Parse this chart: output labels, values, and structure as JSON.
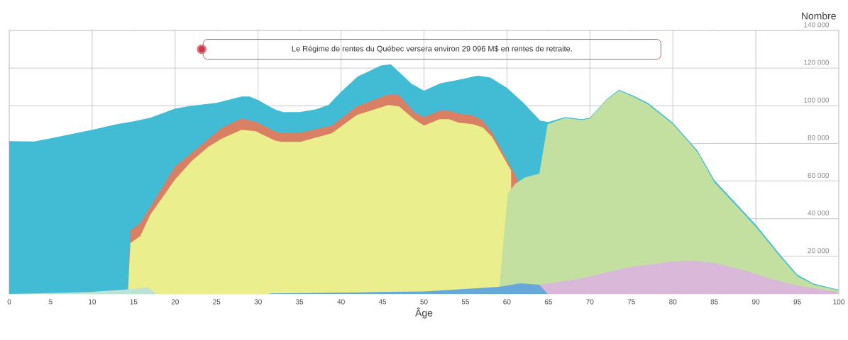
{
  "chart_data": {
    "type": "area",
    "xlabel": "Âge",
    "ylabel": "Nombre",
    "xlim": [
      0,
      100
    ],
    "ylim": [
      0,
      140000
    ],
    "xticks": [
      0,
      5,
      10,
      15,
      20,
      25,
      30,
      35,
      40,
      45,
      50,
      55,
      60,
      65,
      70,
      75,
      80,
      85,
      90,
      95,
      100
    ],
    "yticks": [
      {
        "value": 20000,
        "label": "20 000"
      },
      {
        "value": 40000,
        "label": "40 000"
      },
      {
        "value": 60000,
        "label": "60 000"
      },
      {
        "value": 80000,
        "label": "80 000"
      },
      {
        "value": 100000,
        "label": "100 000"
      },
      {
        "value": 120000,
        "label": "120 000"
      },
      {
        "value": 140000,
        "label": "140 000"
      }
    ],
    "grid": true,
    "annotations": [
      "Le Régime de rentes du Québec versera environ 29 096 M$ en rentes de retraite."
    ],
    "series": [
      {
        "color": "#42bcd5",
        "x": [
          0,
          3,
          5,
          10,
          13,
          15,
          17,
          20,
          22,
          25,
          28,
          29,
          30,
          32,
          33,
          35,
          37,
          38.5,
          39.9,
          42,
          44.8,
          46,
          48.5,
          50,
          52,
          53.5,
          56.5,
          58,
          60,
          62,
          64,
          65,
          67,
          69,
          70,
          72,
          73.5,
          75,
          77,
          80,
          83,
          85,
          90,
          93,
          95,
          97,
          100
        ],
        "values": [
          81200,
          81000,
          82700,
          87200,
          90200,
          91700,
          93600,
          98500,
          100000,
          101500,
          104900,
          104900,
          103000,
          98100,
          96600,
          96600,
          98100,
          100500,
          107000,
          115500,
          121400,
          122000,
          111700,
          108000,
          112000,
          113200,
          116000,
          115000,
          109500,
          101500,
          92100,
          91400,
          94000,
          92900,
          93600,
          103400,
          108500,
          105800,
          101500,
          91000,
          76000,
          60500,
          36800,
          20500,
          10300,
          5500,
          2300
        ]
      },
      {
        "color": "#d97f64",
        "x": [
          14.3,
          14.6,
          15.8,
          20,
          25.7,
          28,
          29.8,
          32,
          32.8,
          35.1,
          38.9,
          41.9,
          45.7,
          47,
          48.8,
          50,
          51.9,
          53,
          54.2,
          55.9,
          57.1,
          58.2,
          61.3
        ],
        "values": [
          0,
          33800,
          37600,
          67700,
          88400,
          93200,
          91400,
          86500,
          85400,
          85700,
          89500,
          99600,
          106000,
          105700,
          96600,
          94000,
          97400,
          97400,
          95900,
          94800,
          92100,
          85700,
          60900
        ]
      },
      {
        "color": "#eaee8c",
        "x": [
          14.3,
          14.6,
          15.8,
          17,
          20,
          22,
          24,
          25.7,
          28,
          29.7,
          32,
          32.8,
          35.1,
          38.9,
          41.9,
          45.7,
          47,
          48.8,
          50,
          51.9,
          53,
          54.2,
          55.9,
          57.1,
          58.2,
          60.5
        ],
        "values": [
          0,
          27000,
          30800,
          42100,
          60900,
          70700,
          78200,
          82700,
          87200,
          86500,
          81600,
          80800,
          80800,
          85400,
          95100,
          100400,
          99600,
          92900,
          89500,
          92900,
          92900,
          91000,
          90200,
          88400,
          83500,
          65600
        ]
      },
      {
        "color": "#c3e0a0",
        "x": [
          59,
          60.1,
          61,
          62.2,
          63.9,
          64.9,
          67,
          69,
          70,
          72,
          73.5,
          75,
          77,
          80,
          83,
          85,
          90,
          93,
          95,
          97,
          100
        ],
        "values": [
          0,
          53400,
          58500,
          62000,
          63900,
          90200,
          93500,
          92400,
          93100,
          103000,
          108000,
          105300,
          100800,
          90200,
          75200,
          59400,
          35700,
          19500,
          9400,
          4900,
          1900
        ]
      },
      {
        "color": "#d9b8d9",
        "x": [
          63.9,
          69,
          74.8,
          78.2,
          79.9,
          82.7,
          85,
          89,
          91.9,
          95,
          99.8
        ],
        "values": [
          4900,
          8300,
          14300,
          16200,
          17300,
          17600,
          16500,
          12000,
          7900,
          4500,
          1100
        ]
      },
      {
        "color": "#67a8db",
        "x": [
          31.4,
          44.8,
          50,
          55.6,
          59,
          61.6,
          63.9,
          64.9
        ],
        "values": [
          300,
          1000,
          1300,
          2800,
          3800,
          5600,
          4900,
          0
        ]
      },
      {
        "color": "#bde3d6",
        "x": [
          0,
          5,
          10,
          13.7,
          16.8,
          17.7
        ],
        "values": [
          0,
          500,
          1100,
          2300,
          3400,
          0
        ]
      },
      {
        "type": "scatter",
        "marker": "circle",
        "color": "#c8394a",
        "x": [
          23.2
        ],
        "values": [
          130000
        ]
      }
    ]
  }
}
